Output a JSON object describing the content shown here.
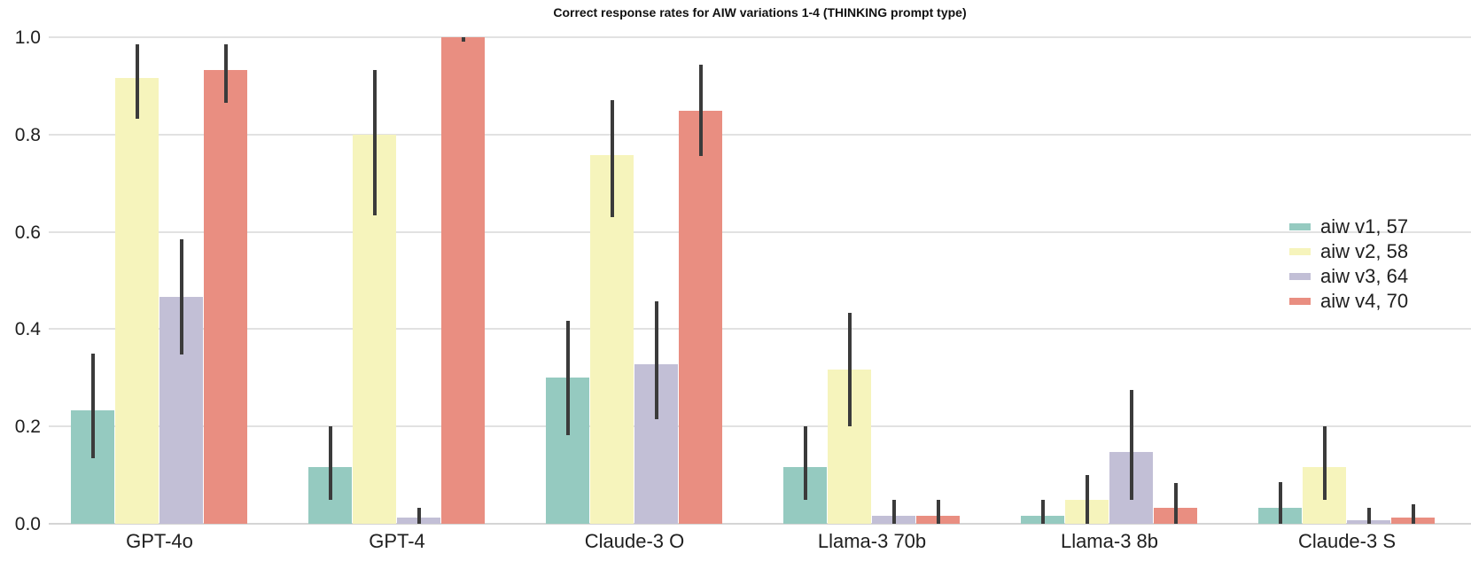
{
  "title": "Correct response rates for AIW variations 1-4 (THINKING prompt type)",
  "chart_data": {
    "type": "bar",
    "title": "Correct response rates for AIW variations 1-4 (THINKING prompt type)",
    "xlabel": "",
    "ylabel": "",
    "categories": [
      "GPT-4o",
      "GPT-4",
      "Claude-3 O",
      "Llama-3 70b",
      "Llama-3 8b",
      "Claude-3 S"
    ],
    "series": [
      {
        "name": "aiw v1, 57",
        "color": "#95cac0",
        "values": [
          0.233,
          0.117,
          0.3,
          0.117,
          0.017,
          0.033
        ],
        "err_low": [
          0.135,
          0.05,
          0.183,
          0.05,
          0.0,
          0.0
        ],
        "err_high": [
          0.35,
          0.2,
          0.417,
          0.2,
          0.05,
          0.085
        ]
      },
      {
        "name": "aiw v2, 58",
        "color": "#f6f4bc",
        "values": [
          0.917,
          0.8,
          0.758,
          0.317,
          0.05,
          0.117
        ],
        "err_low": [
          0.833,
          0.633,
          0.63,
          0.2,
          0.0,
          0.05
        ],
        "err_high": [
          0.985,
          0.933,
          0.87,
          0.433,
          0.1,
          0.2
        ]
      },
      {
        "name": "aiw v3, 64",
        "color": "#c2bfd6",
        "values": [
          0.467,
          0.012,
          0.327,
          0.017,
          0.148,
          0.007
        ],
        "err_low": [
          0.348,
          0.0,
          0.215,
          0.0,
          0.05,
          0.0
        ],
        "err_high": [
          0.585,
          0.033,
          0.458,
          0.05,
          0.275,
          0.033
        ]
      },
      {
        "name": "aiw v4, 70",
        "color": "#e98e81",
        "values": [
          0.933,
          1.0,
          0.848,
          0.017,
          0.033,
          0.012
        ],
        "err_low": [
          0.866,
          0.99,
          0.755,
          0.0,
          0.0,
          0.0
        ],
        "err_high": [
          0.985,
          1.0,
          0.943,
          0.05,
          0.083,
          0.04
        ]
      }
    ],
    "ylim": [
      0.0,
      1.0
    ],
    "ytick_values": [
      0.0,
      0.2,
      0.4,
      0.6,
      0.8,
      1.0
    ],
    "ytick_labels": [
      "0.0",
      "0.2",
      "0.4",
      "0.6",
      "0.8",
      "1.0"
    ],
    "grid": true,
    "legend_position": "center-right",
    "errorbar_color": "#3b3b3b",
    "grid_color": "#e2e2e2",
    "background_color": "#ffffff"
  }
}
